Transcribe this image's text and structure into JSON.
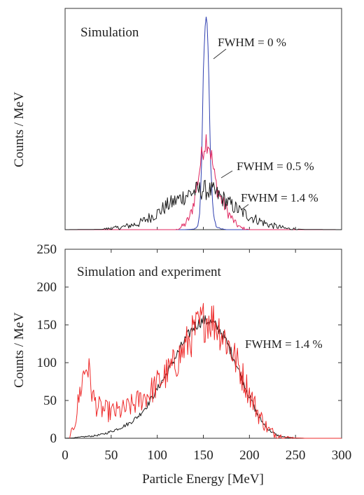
{
  "colors": {
    "black_series": "#1a1a1a",
    "blue_series": "#2f3fb0",
    "pink_series": "#e0245e",
    "red_series": "#ee2a2a",
    "axis": "#333333"
  },
  "chart_data": [
    {
      "type": "line",
      "title": "Simulation",
      "xlabel": "",
      "ylabel": "Counts / MeV",
      "xlim": [
        0,
        300
      ],
      "ylim": [
        0,
        215
      ],
      "y_tick_labels_visible": false,
      "grid": false,
      "series": [
        {
          "name": "FWHM = 0 %",
          "color": "#2f3fb0",
          "x": [
            0,
            100,
            130,
            140,
            144,
            146,
            148,
            150,
            152,
            154,
            156,
            158,
            160,
            162,
            164,
            168,
            175,
            185,
            300
          ],
          "y": [
            0,
            0,
            0,
            0.5,
            3,
            15,
            60,
            150,
            200,
            205,
            150,
            60,
            25,
            10,
            3,
            1,
            0,
            0,
            0
          ]
        },
        {
          "name": "FWHM = 0.5 %",
          "color": "#e0245e",
          "x": [
            0,
            100,
            120,
            125,
            130,
            135,
            138,
            141,
            144,
            147,
            150,
            153,
            156,
            159,
            162,
            165,
            168,
            172,
            176,
            180,
            185,
            190,
            200,
            300
          ],
          "y": [
            0,
            0,
            0,
            2,
            5,
            12,
            20,
            33,
            48,
            65,
            80,
            88,
            85,
            70,
            52,
            40,
            32,
            25,
            18,
            12,
            6,
            2,
            0,
            0
          ]
        },
        {
          "name": "FWHM = 1.4 %",
          "color": "#1a1a1a",
          "x": [
            0,
            40,
            60,
            80,
            100,
            110,
            120,
            130,
            140,
            150,
            160,
            170,
            180,
            190,
            200,
            220,
            240,
            260,
            300
          ],
          "y": [
            0,
            0.3,
            2,
            6,
            16,
            23,
            28,
            33,
            37,
            39,
            37,
            31,
            24,
            18,
            13,
            5,
            1,
            0.2,
            0
          ]
        }
      ],
      "annotations": [
        "FWHM = 0 %",
        "FWHM = 0.5 %",
        "FWHM = 1.4 %"
      ]
    },
    {
      "type": "line",
      "title": "Simulation and experiment",
      "xlabel": "Particle Energy [MeV]",
      "ylabel": "Counts / MeV",
      "xlim": [
        0,
        300
      ],
      "ylim": [
        0,
        250
      ],
      "x_ticks": [
        0,
        50,
        100,
        150,
        200,
        250,
        300
      ],
      "y_ticks": [
        0,
        50,
        100,
        150,
        200,
        250
      ],
      "grid": false,
      "series": [
        {
          "color": "#1a1a1a",
          "x": [
            0,
            10,
            20,
            30,
            40,
            50,
            60,
            70,
            80,
            90,
            100,
            110,
            120,
            130,
            140,
            150,
            160,
            170,
            180,
            190,
            200,
            210,
            220,
            230,
            240,
            250,
            260,
            270,
            280,
            290,
            300
          ],
          "y": [
            0,
            0.5,
            2,
            3,
            5,
            9,
            14,
            20,
            30,
            45,
            65,
            85,
            108,
            130,
            148,
            156,
            153,
            140,
            115,
            85,
            55,
            28,
            12,
            4,
            1,
            0.3,
            0,
            0,
            0,
            0,
            0
          ]
        },
        {
          "color": "#ee2a2a",
          "x": [
            5,
            8,
            12,
            16,
            20,
            24,
            27,
            30,
            35,
            40,
            45,
            50,
            55,
            60,
            65,
            70,
            75,
            80,
            90,
            100,
            110,
            120,
            130,
            140,
            150,
            155,
            160,
            165,
            170,
            180,
            190,
            200,
            210,
            220,
            230,
            240,
            250,
            260,
            270,
            280,
            290,
            300
          ],
          "y": [
            0,
            10,
            30,
            60,
            85,
            98,
            80,
            55,
            42,
            38,
            36,
            35,
            35,
            36,
            38,
            42,
            45,
            50,
            58,
            72,
            85,
            100,
            120,
            140,
            155,
            160,
            156,
            150,
            140,
            118,
            90,
            60,
            32,
            12,
            4,
            1,
            0.5,
            0,
            0,
            0,
            0,
            0
          ]
        }
      ],
      "annotations": [
        "FWHM = 1.4 %"
      ]
    }
  ]
}
